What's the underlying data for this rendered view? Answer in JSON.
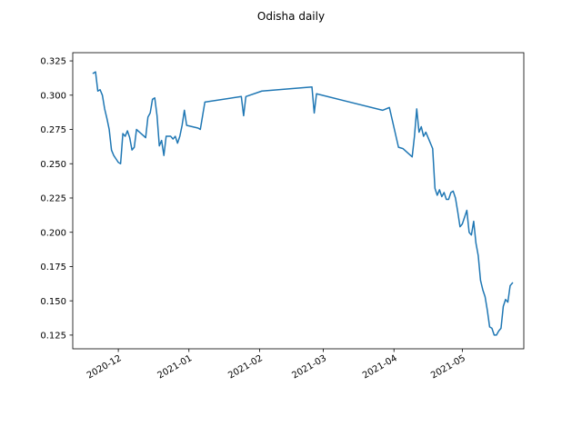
{
  "chart_data": {
    "type": "line",
    "title": "Odisha daily",
    "xlabel": "",
    "ylabel": "",
    "x_axis_type": "date",
    "xlim": [
      "2020-11-11",
      "2021-05-28"
    ],
    "ylim": [
      0.115,
      0.331
    ],
    "grid": false,
    "line_color": "#1f77b4",
    "x_ticks": [
      {
        "date": "2020-12-01",
        "label": "2020-12"
      },
      {
        "date": "2021-01-01",
        "label": "2021-01"
      },
      {
        "date": "2021-02-01",
        "label": "2021-02"
      },
      {
        "date": "2021-03-01",
        "label": "2021-03"
      },
      {
        "date": "2021-04-01",
        "label": "2021-04"
      },
      {
        "date": "2021-05-01",
        "label": "2021-05"
      }
    ],
    "y_ticks": [
      {
        "value": 0.125,
        "label": "0.125"
      },
      {
        "value": 0.15,
        "label": "0.150"
      },
      {
        "value": 0.175,
        "label": "0.175"
      },
      {
        "value": 0.2,
        "label": "0.200"
      },
      {
        "value": 0.225,
        "label": "0.225"
      },
      {
        "value": 0.25,
        "label": "0.250"
      },
      {
        "value": 0.275,
        "label": "0.275"
      },
      {
        "value": 0.3,
        "label": "0.300"
      },
      {
        "value": 0.325,
        "label": "0.325"
      }
    ],
    "series": [
      {
        "points": [
          [
            "2020-11-20",
            0.316
          ],
          [
            "2020-11-21",
            0.317
          ],
          [
            "2020-11-22",
            0.303
          ],
          [
            "2020-11-23",
            0.304
          ],
          [
            "2020-11-24",
            0.3
          ],
          [
            "2020-11-25",
            0.29
          ],
          [
            "2020-11-26",
            0.283
          ],
          [
            "2020-11-27",
            0.275
          ],
          [
            "2020-11-28",
            0.26
          ],
          [
            "2020-11-29",
            0.256
          ],
          [
            "2020-12-01",
            0.251
          ],
          [
            "2020-12-02",
            0.25
          ],
          [
            "2020-12-03",
            0.272
          ],
          [
            "2020-12-04",
            0.27
          ],
          [
            "2020-12-05",
            0.274
          ],
          [
            "2020-12-06",
            0.269
          ],
          [
            "2020-12-07",
            0.26
          ],
          [
            "2020-12-08",
            0.262
          ],
          [
            "2020-12-09",
            0.275
          ],
          [
            "2020-12-11",
            0.272
          ],
          [
            "2020-12-13",
            0.269
          ],
          [
            "2020-12-14",
            0.284
          ],
          [
            "2020-12-15",
            0.287
          ],
          [
            "2020-12-16",
            0.297
          ],
          [
            "2020-12-17",
            0.298
          ],
          [
            "2020-12-18",
            0.285
          ],
          [
            "2020-12-19",
            0.263
          ],
          [
            "2020-12-20",
            0.267
          ],
          [
            "2020-12-21",
            0.256
          ],
          [
            "2020-12-22",
            0.27
          ],
          [
            "2020-12-24",
            0.27
          ],
          [
            "2020-12-25",
            0.268
          ],
          [
            "2020-12-26",
            0.27
          ],
          [
            "2020-12-27",
            0.265
          ],
          [
            "2020-12-28",
            0.27
          ],
          [
            "2020-12-29",
            0.278
          ],
          [
            "2020-12-30",
            0.289
          ],
          [
            "2020-12-31",
            0.278
          ],
          [
            "2021-01-05",
            0.276
          ],
          [
            "2021-01-06",
            0.275
          ],
          [
            "2021-01-08",
            0.295
          ],
          [
            "2021-01-24",
            0.299
          ],
          [
            "2021-01-25",
            0.285
          ],
          [
            "2021-01-26",
            0.299
          ],
          [
            "2021-02-02",
            0.303
          ],
          [
            "2021-02-24",
            0.306
          ],
          [
            "2021-02-25",
            0.287
          ],
          [
            "2021-02-26",
            0.301
          ],
          [
            "2021-03-27",
            0.289
          ],
          [
            "2021-03-30",
            0.291
          ],
          [
            "2021-04-03",
            0.262
          ],
          [
            "2021-04-05",
            0.261
          ],
          [
            "2021-04-09",
            0.255
          ],
          [
            "2021-04-10",
            0.27
          ],
          [
            "2021-04-11",
            0.29
          ],
          [
            "2021-04-12",
            0.273
          ],
          [
            "2021-04-13",
            0.277
          ],
          [
            "2021-04-14",
            0.27
          ],
          [
            "2021-04-15",
            0.273
          ],
          [
            "2021-04-16",
            0.269
          ],
          [
            "2021-04-18",
            0.261
          ],
          [
            "2021-04-19",
            0.232
          ],
          [
            "2021-04-20",
            0.227
          ],
          [
            "2021-04-21",
            0.231
          ],
          [
            "2021-04-22",
            0.226
          ],
          [
            "2021-04-23",
            0.229
          ],
          [
            "2021-04-24",
            0.224
          ],
          [
            "2021-04-25",
            0.224
          ],
          [
            "2021-04-26",
            0.229
          ],
          [
            "2021-04-27",
            0.23
          ],
          [
            "2021-04-28",
            0.225
          ],
          [
            "2021-04-29",
            0.215
          ],
          [
            "2021-04-30",
            0.204
          ],
          [
            "2021-05-01",
            0.206
          ],
          [
            "2021-05-02",
            0.211
          ],
          [
            "2021-05-03",
            0.216
          ],
          [
            "2021-05-04",
            0.2
          ],
          [
            "2021-05-05",
            0.198
          ],
          [
            "2021-05-06",
            0.208
          ],
          [
            "2021-05-07",
            0.192
          ],
          [
            "2021-05-08",
            0.183
          ],
          [
            "2021-05-09",
            0.165
          ],
          [
            "2021-05-10",
            0.158
          ],
          [
            "2021-05-11",
            0.153
          ],
          [
            "2021-05-12",
            0.143
          ],
          [
            "2021-05-13",
            0.131
          ],
          [
            "2021-05-14",
            0.13
          ],
          [
            "2021-05-15",
            0.125
          ],
          [
            "2021-05-16",
            0.125
          ],
          [
            "2021-05-17",
            0.128
          ],
          [
            "2021-05-18",
            0.13
          ],
          [
            "2021-05-19",
            0.146
          ],
          [
            "2021-05-20",
            0.151
          ],
          [
            "2021-05-21",
            0.149
          ],
          [
            "2021-05-22",
            0.161
          ],
          [
            "2021-05-23",
            0.163
          ]
        ]
      }
    ]
  }
}
